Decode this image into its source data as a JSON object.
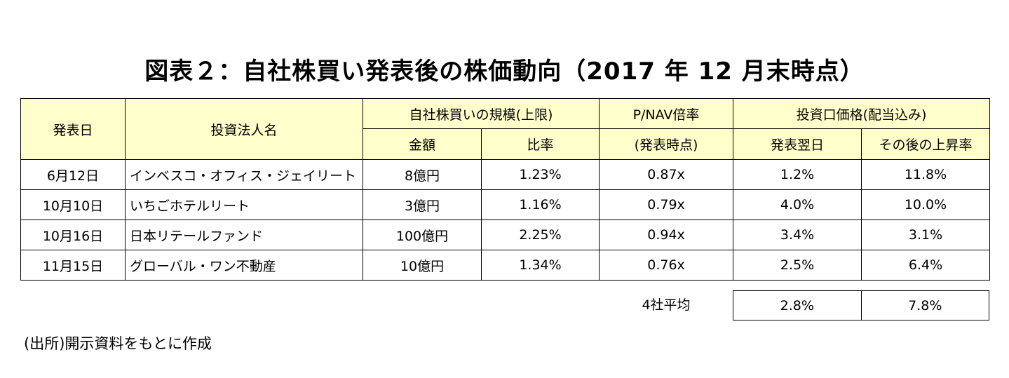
{
  "title": "図表２：自社株買い発表後の株価動向（2017 年 12 月末時点）",
  "header": {
    "date": "発表日",
    "name": "投資法人名",
    "buyback": "自社株買いの規模(上限)",
    "amount": "金額",
    "ratio": "比率",
    "pnav_line1": "P/NAV倍率",
    "pnav_line2": "(発表時点)",
    "return": "投資口価格(配当込み)",
    "next_day": "発表翌日",
    "after": "その後の上昇率"
  },
  "rows": [
    {
      "date": "6月12日",
      "name": "インベスコ・オフィス・ジェイリート",
      "amount": "8億円",
      "ratio": "1.23%",
      "pnav": "0.87x",
      "next_day": "1.2%",
      "after": "11.8%"
    },
    {
      "date": "10月10日",
      "name": "いちごホテルリート",
      "amount": "3億円",
      "ratio": "1.16%",
      "pnav": "0.79x",
      "next_day": "4.0%",
      "after": "10.0%"
    },
    {
      "date": "10月16日",
      "name": "日本リテールファンド",
      "amount": "100億円",
      "ratio": "2.25%",
      "pnav": "0.94x",
      "next_day": "3.4%",
      "after": "3.1%"
    },
    {
      "date": "11月15日",
      "name": "グローバル・ワン不動産",
      "amount": "10億円",
      "ratio": "1.34%",
      "pnav": "0.76x",
      "next_day": "2.5%",
      "after": "6.4%"
    }
  ],
  "average": {
    "label": "4社平均",
    "next_day": "2.8%",
    "after": "7.8%"
  },
  "source": "(出所)開示資料をもとに作成"
}
